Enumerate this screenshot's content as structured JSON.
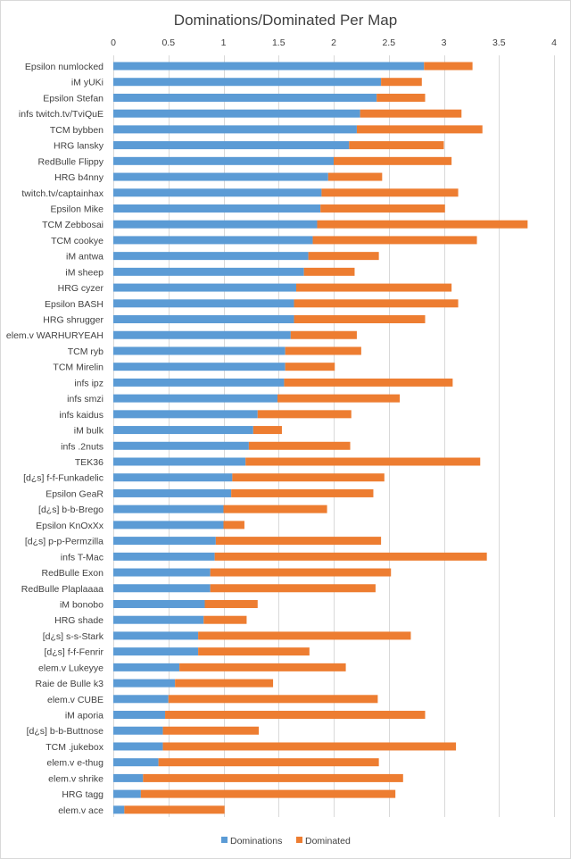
{
  "chart_data": {
    "type": "bar",
    "orientation": "horizontal",
    "stacked": true,
    "title": "Dominations/Dominated Per Map",
    "xlim": [
      0,
      4
    ],
    "x_ticks": [
      "0",
      "0.5",
      "1",
      "1.5",
      "2",
      "2.5",
      "3",
      "3.5",
      "4"
    ],
    "x_tick_values": [
      0,
      0.5,
      1,
      1.5,
      2,
      2.5,
      3,
      3.5,
      4
    ],
    "x_axis_position": "top",
    "grid": true,
    "legend_position": "bottom",
    "colors": {
      "Domination": "#5b9bd5",
      "Dominated": "#ed7d31"
    },
    "categories": [
      "Epsilon numlocked",
      "iM yUKi",
      "Epsilon Stefan",
      "infs twitch.tv/TviQuE",
      "TCM bybben",
      "HRG lansky",
      "RedBulle Flippy",
      "HRG b4nny",
      "twitch.tv/captainhax",
      "Epsilon Mike",
      "TCM Zebbosai",
      "TCM cookye",
      "iM antwa",
      "iM sheep",
      "HRG cyzer",
      "Epsilon BASH",
      "HRG shrugger",
      "elem.v WARHURYEAH",
      "TCM ryb",
      "TCM Mirelin",
      "infs ipz",
      "infs smzi",
      "infs kaidus",
      "iM bulk",
      "infs .2nuts",
      "TEK36",
      "[d¿s] f-f-Funkadelic",
      "Epsilon GeaR",
      "[d¿s] b-b-Brego",
      "Epsilon KnOxXx",
      "[d¿s] p-p-Permzilla",
      "infs T-Mac",
      "RedBulle Exon",
      "RedBulle Plaplaaaa",
      "iM bonobo",
      "HRG shade",
      "[d¿s] s-s-Stark",
      "[d¿s] f-f-Fenrir",
      "elem.v Lukeyye",
      "Raie de Bulle k3",
      "elem.v CUBE",
      "iM aporia",
      "[d¿s] b-b-Buttnose",
      "TCM .jukebox",
      "elem.v e-thug",
      "elem.v shrike",
      "HRG tagg",
      "elem.v ace"
    ],
    "series": [
      {
        "name": "Dominations",
        "values": [
          2.82,
          2.43,
          2.39,
          2.24,
          2.21,
          2.14,
          2.0,
          1.95,
          1.89,
          1.88,
          1.85,
          1.81,
          1.77,
          1.73,
          1.66,
          1.64,
          1.64,
          1.61,
          1.56,
          1.56,
          1.55,
          1.49,
          1.31,
          1.27,
          1.23,
          1.2,
          1.08,
          1.07,
          1.0,
          1.0,
          0.93,
          0.92,
          0.88,
          0.88,
          0.83,
          0.82,
          0.77,
          0.77,
          0.6,
          0.56,
          0.5,
          0.47,
          0.45,
          0.45,
          0.41,
          0.27,
          0.25,
          0.1
        ]
      },
      {
        "name": "Dominated",
        "values": [
          0.44,
          0.37,
          0.44,
          0.92,
          1.14,
          0.86,
          1.07,
          0.49,
          1.24,
          1.13,
          1.91,
          1.49,
          0.64,
          0.46,
          1.41,
          1.49,
          1.19,
          0.6,
          0.69,
          0.45,
          1.53,
          1.11,
          0.85,
          0.26,
          0.92,
          2.13,
          1.38,
          1.29,
          0.94,
          0.19,
          1.5,
          2.47,
          1.64,
          1.5,
          0.48,
          0.39,
          1.93,
          1.01,
          1.51,
          0.89,
          1.9,
          2.36,
          0.87,
          2.66,
          2.0,
          2.36,
          2.31,
          0.91
        ]
      }
    ]
  }
}
